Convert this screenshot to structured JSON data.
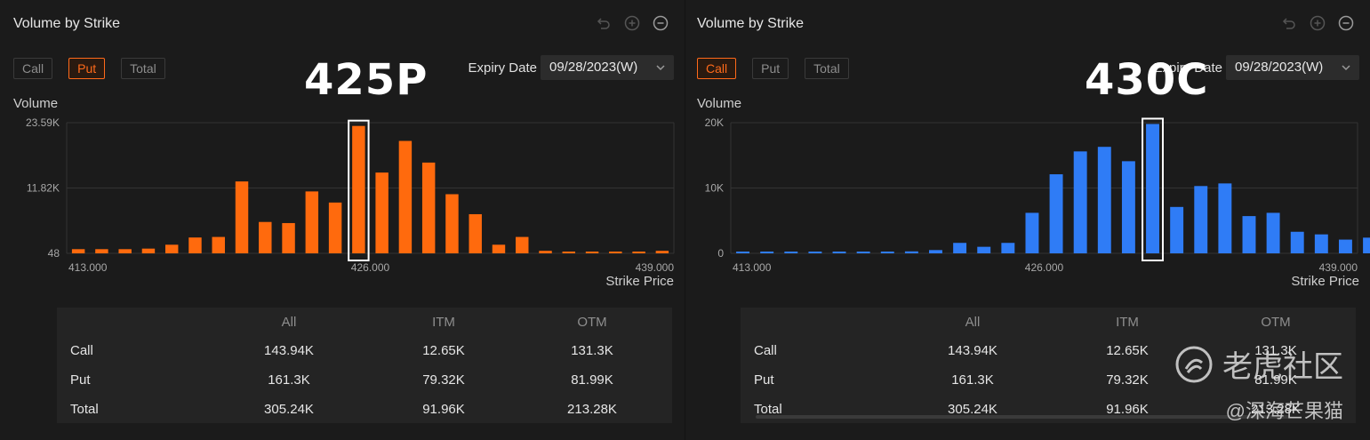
{
  "panels": [
    {
      "title": "Volume by Strike",
      "tabs": [
        {
          "label": "Call",
          "active": false
        },
        {
          "label": "Put",
          "active": true
        },
        {
          "label": "Total",
          "active": false
        }
      ],
      "expiry_label": "Expiry Date",
      "expiry_value": "09/28/2023(W)",
      "y_axis_label": "Volume",
      "x_axis_label": "Strike Price",
      "annotation": "425P",
      "bar_color": "#ff6a0d",
      "table": {
        "headers": [
          "All",
          "ITM",
          "OTM"
        ],
        "rows": [
          {
            "label": "Call",
            "values": [
              "143.94K",
              "12.65K",
              "131.3K"
            ]
          },
          {
            "label": "Put",
            "values": [
              "161.3K",
              "79.32K",
              "81.99K"
            ]
          },
          {
            "label": "Total",
            "values": [
              "305.24K",
              "91.96K",
              "213.28K"
            ]
          }
        ]
      }
    },
    {
      "title": "Volume by Strike",
      "tabs": [
        {
          "label": "Call",
          "active": true
        },
        {
          "label": "Put",
          "active": false
        },
        {
          "label": "Total",
          "active": false
        }
      ],
      "expiry_label": "Expiry Date",
      "expiry_value": "09/28/2023(W)",
      "y_axis_label": "Volume",
      "x_axis_label": "Strike Price",
      "annotation": "430C",
      "bar_color": "#2f7cf6",
      "table": {
        "headers": [
          "All",
          "ITM",
          "OTM"
        ],
        "rows": [
          {
            "label": "Call",
            "values": [
              "143.94K",
              "12.65K",
              "131.3K"
            ]
          },
          {
            "label": "Put",
            "values": [
              "161.3K",
              "79.32K",
              "81.99K"
            ]
          },
          {
            "label": "Total",
            "values": [
              "305.24K",
              "91.96K",
              "213.28K"
            ]
          }
        ]
      }
    }
  ],
  "watermark": {
    "brand": "老虎社区",
    "user": "@深海芒果猫"
  },
  "chart_data": [
    {
      "type": "bar",
      "series": [
        {
          "values": [
            800,
            800,
            800,
            900,
            1600,
            2900,
            3000,
            13000,
            5700,
            5500,
            11200,
            9200,
            23000,
            14600,
            20300,
            16400,
            10700,
            7100,
            1600,
            3000,
            500,
            300,
            200,
            200,
            200,
            500
          ]
        }
      ],
      "x": [
        413,
        414,
        415,
        416,
        417,
        418,
        419,
        420,
        421,
        422,
        423,
        424,
        425,
        426,
        427,
        428,
        429,
        430,
        431,
        432,
        433,
        434,
        435,
        436,
        437,
        438
      ],
      "x_ticks": [
        "413.000",
        "426.000",
        "439.000"
      ],
      "y_ticks": [
        "48",
        "11.82K",
        "23.59K"
      ],
      "ylim": [
        48,
        23590
      ],
      "xlim": [
        413,
        439
      ],
      "xlabel": "Strike Price",
      "ylabel": "Volume",
      "highlight_x": 425,
      "grid": true
    },
    {
      "type": "bar",
      "series": [
        {
          "values": [
            100,
            100,
            100,
            100,
            100,
            100,
            100,
            300,
            500,
            1600,
            1000,
            1600,
            6200,
            12100,
            15600,
            16300,
            14100,
            19800,
            7100,
            10300,
            10700,
            5700,
            6200,
            3300,
            2900,
            2100,
            2400
          ]
        }
      ],
      "x": [
        413,
        414,
        415,
        416,
        417,
        418,
        419,
        420,
        421,
        422,
        423,
        424,
        425,
        426,
        427,
        428,
        429,
        430,
        431,
        432,
        433,
        434,
        435,
        436,
        437,
        438,
        439
      ],
      "x_ticks": [
        "413.000",
        "426.000",
        "439.000"
      ],
      "y_ticks": [
        "0",
        "10K",
        "20K"
      ],
      "ylim": [
        0,
        20000
      ],
      "xlim": [
        413,
        439
      ],
      "xlabel": "Strike Price",
      "ylabel": "Volume",
      "highlight_x": 430,
      "grid": true
    }
  ]
}
